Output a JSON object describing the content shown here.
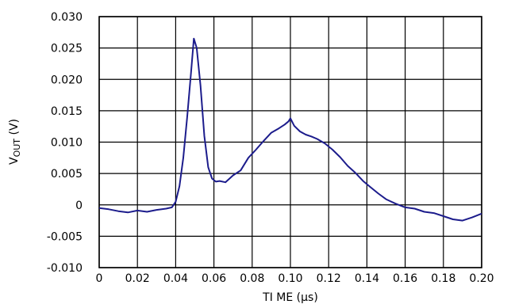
{
  "chart_data": {
    "type": "line",
    "title": "",
    "xlabel": "TI ME (µs)",
    "ylabel": "V",
    "ylabel_subscript": "OUT",
    "ylabel_unit": " (V)",
    "xlim": [
      0,
      0.2
    ],
    "ylim": [
      -0.01,
      0.03
    ],
    "x_ticks": [
      0,
      0.02,
      0.04,
      0.06,
      0.08,
      0.1,
      0.12,
      0.14,
      0.16,
      0.18,
      0.2
    ],
    "x_tick_labels": [
      "0",
      "0.02",
      "0.04",
      "0.06",
      "0.08",
      "0.10",
      "0.12",
      "0.14",
      "0.16",
      "0.18",
      "0.20"
    ],
    "y_ticks": [
      -0.01,
      -0.005,
      0,
      0.005,
      0.01,
      0.015,
      0.02,
      0.025,
      0.03
    ],
    "y_tick_labels": [
      "-0.010",
      "-0.005",
      "0",
      "0.005",
      "0.010",
      "0.015",
      "0.020",
      "0.025",
      "0.030"
    ],
    "grid": true,
    "line_color": "#1c1c8c",
    "series": [
      {
        "x": [
          0,
          0.005,
          0.01,
          0.015,
          0.02,
          0.025,
          0.03,
          0.035,
          0.038,
          0.04,
          0.042,
          0.044,
          0.046,
          0.048,
          0.0495,
          0.051,
          0.053,
          0.055,
          0.057,
          0.059,
          0.061,
          0.063,
          0.066,
          0.07,
          0.074,
          0.078,
          0.082,
          0.086,
          0.09,
          0.094,
          0.097,
          0.099,
          0.1,
          0.102,
          0.105,
          0.108,
          0.111,
          0.114,
          0.118,
          0.122,
          0.126,
          0.13,
          0.134,
          0.138,
          0.142,
          0.146,
          0.15,
          0.155,
          0.16,
          0.165,
          0.17,
          0.175,
          0.18,
          0.185,
          0.19,
          0.195,
          0.2
        ],
        "y": [
          -0.0005,
          -0.0007,
          -0.001,
          -0.0012,
          -0.0009,
          -0.0011,
          -0.0008,
          -0.0006,
          -0.0004,
          0.0005,
          0.003,
          0.0075,
          0.014,
          0.021,
          0.0265,
          0.025,
          0.019,
          0.011,
          0.006,
          0.0042,
          0.0037,
          0.0038,
          0.0036,
          0.0047,
          0.0055,
          0.0075,
          0.0088,
          0.0102,
          0.0115,
          0.0122,
          0.0128,
          0.0133,
          0.0138,
          0.0126,
          0.0117,
          0.0112,
          0.0109,
          0.0105,
          0.0098,
          0.0088,
          0.0076,
          0.0062,
          0.0051,
          0.0038,
          0.0028,
          0.0018,
          0.0009,
          0.0002,
          -0.0004,
          -0.0006,
          -0.0011,
          -0.0013,
          -0.0018,
          -0.0023,
          -0.0025,
          -0.002,
          -0.0014
        ]
      }
    ]
  }
}
